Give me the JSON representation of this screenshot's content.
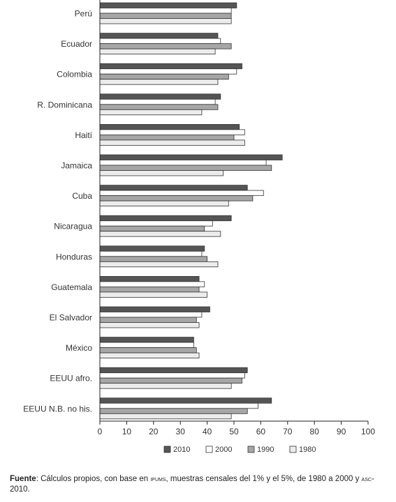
{
  "chart_data": {
    "type": "bar",
    "orientation": "horizontal",
    "categories": [
      "Perú",
      "Ecuador",
      "Colombia",
      "R. Dominicana",
      "Haití",
      "Jamaica",
      "Cuba",
      "Nicaragua",
      "Honduras",
      "Guatemala",
      "El Salvador",
      "México",
      "EEUU afro.",
      "EEUU N.B. no his."
    ],
    "series": [
      {
        "name": "2010",
        "color": "#555555",
        "values": [
          51,
          44,
          53,
          45,
          52,
          68,
          55,
          49,
          39,
          37,
          41,
          35,
          55,
          64
        ]
      },
      {
        "name": "2000",
        "color": "#ffffff",
        "values": [
          49,
          45,
          51,
          43,
          54,
          62,
          61,
          42,
          38,
          39,
          38,
          35,
          54,
          59
        ]
      },
      {
        "name": "1990",
        "color": "#a6a6a6",
        "values": [
          49,
          49,
          48,
          44,
          50,
          64,
          57,
          39,
          40,
          37,
          36,
          36,
          53,
          55
        ]
      },
      {
        "name": "1980",
        "color": "#ececec",
        "values": [
          49,
          43,
          44,
          38,
          54,
          46,
          48,
          45,
          44,
          40,
          37,
          37,
          49,
          49
        ]
      }
    ],
    "xlim": [
      0,
      100
    ],
    "xticks": [
      0,
      10,
      20,
      30,
      40,
      50,
      60,
      70,
      80,
      90,
      100
    ],
    "grid": false,
    "legend_position": "bottom"
  },
  "source": {
    "label": "Fuente",
    "text_before": ": Cálculos propios, con base en ",
    "ipums": "ipums",
    "text_middle": ", muestras censales del 1% y el 5%, de 1980 a 2000 y ",
    "asc": "asc",
    "text_after": "-2010."
  }
}
